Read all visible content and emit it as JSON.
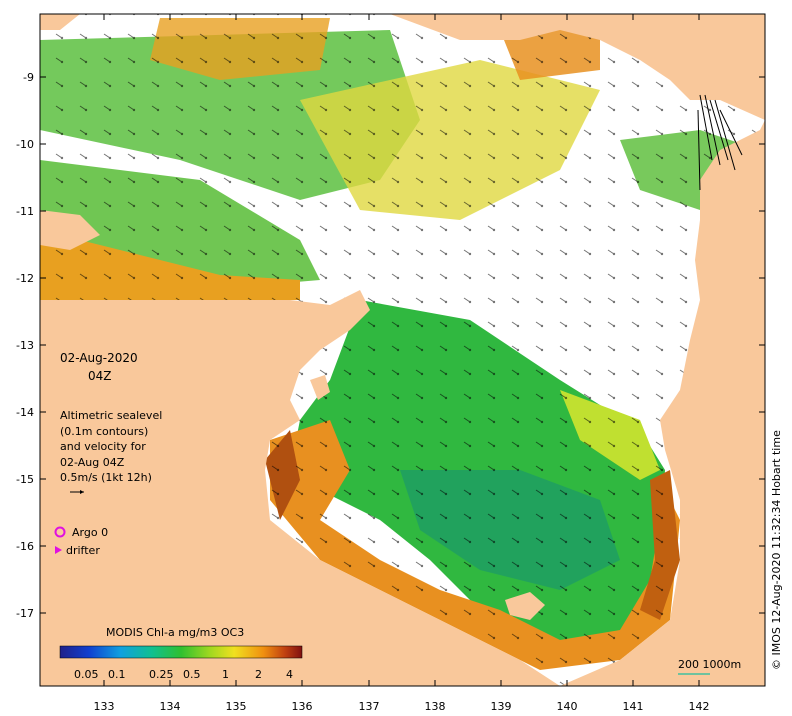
{
  "map": {
    "date_label": "02-Aug-2020",
    "time_label": "04Z",
    "altimetry_lines": [
      "Altimetric sealevel",
      "(0.1m contours)",
      "and velocity for",
      "02-Aug 04Z",
      "0.5m/s (1kt 12h)"
    ],
    "argo_label": "Argo 0",
    "drifter_label": "drifter",
    "colorbar_title": "MODIS Chl-a mg/m3 OC3",
    "colorbar_ticks": [
      "0.05",
      "0.1",
      "0.25",
      "0.5",
      "1",
      "2",
      "4"
    ],
    "scale_label": "200  1000m",
    "credit": "© IMOS 12-Aug-2020 11:32:34 Hobart time",
    "x_ticks": [
      "133",
      "134",
      "135",
      "136",
      "137",
      "138",
      "139",
      "140",
      "141",
      "142"
    ],
    "y_ticks": [
      "-9",
      "-10",
      "-11",
      "-12",
      "-13",
      "-14",
      "-15",
      "-16",
      "-17"
    ],
    "colors": {
      "land": "#f9c89b",
      "ocean_nodata": "#ffffff",
      "argo": "#e010e0",
      "drifter": "#e010e0",
      "scale_bar": "#40c0a0"
    }
  }
}
